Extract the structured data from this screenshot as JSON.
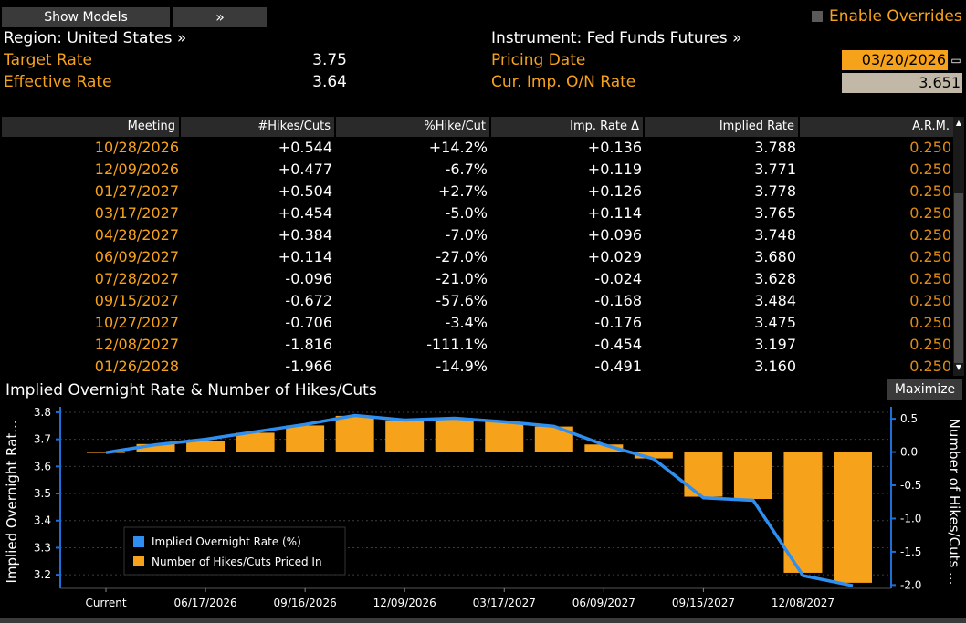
{
  "toolbar": {
    "show_models_label": "Show Models",
    "expand_label": "»",
    "enable_overrides_label": "Enable Overrides"
  },
  "info": {
    "region": "Region: United States »",
    "instrument": "Instrument: Fed Funds Futures »",
    "target_rate_label": "Target Rate",
    "target_rate_value": "3.75",
    "effective_rate_label": "Effective Rate",
    "effective_rate_value": "3.64",
    "pricing_date_label": "Pricing Date",
    "pricing_date_value": "03/20/2026",
    "cur_imp_label": "Cur. Imp. O/N Rate",
    "cur_imp_value": "3.651"
  },
  "table": {
    "headers": [
      "Meeting",
      "#Hikes/Cuts",
      "%Hike/Cut",
      "Imp. Rate Δ",
      "Implied Rate",
      "A.R.M."
    ],
    "rows": [
      [
        "10/28/2026",
        "+0.544",
        "+14.2%",
        "+0.136",
        "3.788",
        "0.250"
      ],
      [
        "12/09/2026",
        "+0.477",
        "-6.7%",
        "+0.119",
        "3.771",
        "0.250"
      ],
      [
        "01/27/2027",
        "+0.504",
        "+2.7%",
        "+0.126",
        "3.778",
        "0.250"
      ],
      [
        "03/17/2027",
        "+0.454",
        "-5.0%",
        "+0.114",
        "3.765",
        "0.250"
      ],
      [
        "04/28/2027",
        "+0.384",
        "-7.0%",
        "+0.096",
        "3.748",
        "0.250"
      ],
      [
        "06/09/2027",
        "+0.114",
        "-27.0%",
        "+0.029",
        "3.680",
        "0.250"
      ],
      [
        "07/28/2027",
        "-0.096",
        "-21.0%",
        "-0.024",
        "3.628",
        "0.250"
      ],
      [
        "09/15/2027",
        "-0.672",
        "-57.6%",
        "-0.168",
        "3.484",
        "0.250"
      ],
      [
        "10/27/2027",
        "-0.706",
        "-3.4%",
        "-0.176",
        "3.475",
        "0.250"
      ],
      [
        "12/08/2027",
        "-1.816",
        "-111.1%",
        "-0.454",
        "3.197",
        "0.250"
      ],
      [
        "01/26/2028",
        "-1.966",
        "-14.9%",
        "-0.491",
        "3.160",
        "0.250"
      ]
    ]
  },
  "chart_panel": {
    "maximize_label": "Maximize"
  },
  "chart_data": {
    "type": "bar",
    "title": "Implied Overnight Rate & Number of Hikes/Cuts",
    "ylabel_left": "Implied Overnight Rat...",
    "ylabel_right": "Number of Hikes/Cuts ...",
    "ylim_left": [
      3.15,
      3.82
    ],
    "ylim_right": [
      -2.05,
      0.68
    ],
    "yticks_left": [
      "3.8",
      "3.7",
      "3.6",
      "3.5",
      "3.4",
      "3.3",
      "3.2"
    ],
    "yticks_right": [
      "0.5",
      "0.0",
      "-0.5",
      "-1.0",
      "-1.5",
      "-2.0"
    ],
    "xtick_labels": [
      "Current",
      "06/17/2026",
      "09/16/2026",
      "12/09/2026",
      "03/17/2027",
      "06/09/2027",
      "09/15/2027",
      "12/08/2027"
    ],
    "series": [
      {
        "name": "Implied Overnight Rate (%)",
        "color": "#2f8ff0",
        "type": "line",
        "values": [
          3.651,
          3.68,
          3.7,
          3.728,
          3.755,
          3.788,
          3.771,
          3.778,
          3.765,
          3.748,
          3.68,
          3.628,
          3.484,
          3.475,
          3.197,
          3.16
        ]
      },
      {
        "name": "Number of Hikes/Cuts Priced In",
        "color": "#f7a21b",
        "type": "bar",
        "values": [
          0.0,
          0.12,
          0.16,
          0.29,
          0.4,
          0.544,
          0.477,
          0.504,
          0.454,
          0.384,
          0.114,
          -0.096,
          -0.672,
          -0.706,
          -1.816,
          -1.966
        ]
      }
    ]
  }
}
